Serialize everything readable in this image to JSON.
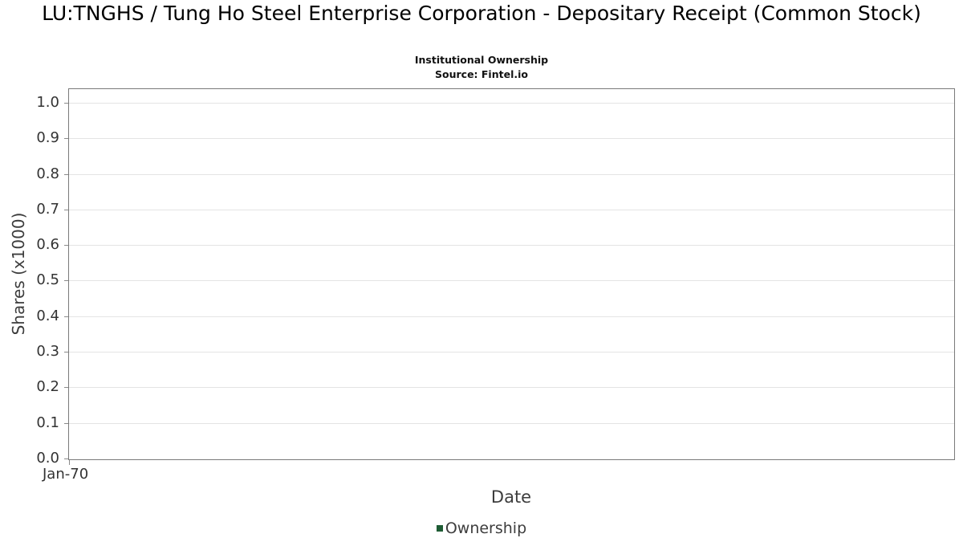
{
  "header": {
    "title": "LU:TNGHS / Tung Ho Steel Enterprise Corporation - Depositary Receipt (Common Stock)",
    "subtitle": "Institutional Ownership",
    "source": "Source: Fintel.io"
  },
  "chart_data": {
    "type": "line",
    "title": "LU:TNGHS / Tung Ho Steel Enterprise Corporation - Depositary Receipt (Common Stock)",
    "subtitle": "Institutional Ownership",
    "source_note": "Source: Fintel.io",
    "xlabel": "Date",
    "ylabel": "Shares (x1000)",
    "ylim": [
      0.0,
      1.04
    ],
    "grid": "horizontal",
    "legend_position": "bottom-center",
    "yticks": [
      {
        "v": 0.0,
        "label": "0.0"
      },
      {
        "v": 0.1,
        "label": "0.1"
      },
      {
        "v": 0.2,
        "label": "0.2"
      },
      {
        "v": 0.3,
        "label": "0.3"
      },
      {
        "v": 0.4,
        "label": "0.4"
      },
      {
        "v": 0.5,
        "label": "0.5"
      },
      {
        "v": 0.6,
        "label": "0.6"
      },
      {
        "v": 0.7,
        "label": "0.7"
      },
      {
        "v": 0.8,
        "label": "0.8"
      },
      {
        "v": 0.9,
        "label": "0.9"
      },
      {
        "v": 1.0,
        "label": "1.0"
      }
    ],
    "xticks": [
      {
        "pos": 0,
        "label": "Jan-70"
      }
    ],
    "series": [
      {
        "name": "Ownership",
        "color": "#1e5c34",
        "x": [],
        "values": []
      }
    ],
    "colors": {
      "plot_border": "#7a7a7a",
      "gridline": "#e4e4e4",
      "tick_text": "#333333",
      "axis_label_text": "#3d3d3d",
      "legend_marker": "#1e5c34"
    }
  },
  "legend": {
    "items": [
      {
        "label": "Ownership",
        "color": "#1e5c34"
      }
    ]
  }
}
